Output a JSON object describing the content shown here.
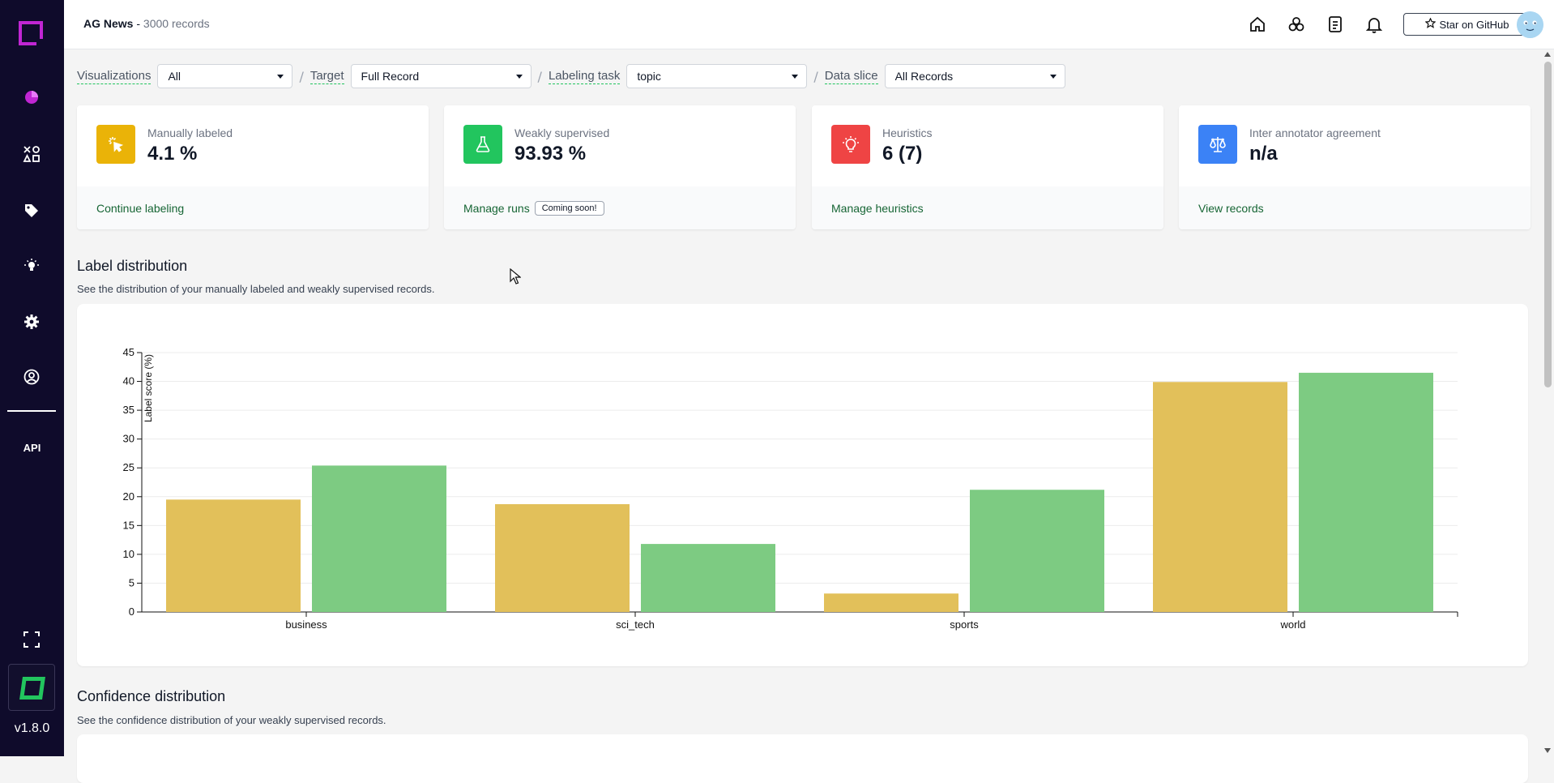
{
  "project": {
    "name": "AG News",
    "separator": "-",
    "records": "3000 records"
  },
  "header": {
    "github_label": "Star on GitHub"
  },
  "sidebar": {
    "icons": [
      "overview-icon",
      "heuristics-icon",
      "labeling-icon",
      "knowledge-icon",
      "settings-icon",
      "account-icon",
      "fullscreen-icon"
    ],
    "api_label": "API",
    "version": "v1.8.0"
  },
  "filters": [
    {
      "label": "Visualizations",
      "value": "All"
    },
    {
      "label": "Target",
      "value": "Full Record"
    },
    {
      "label": "Labeling task",
      "value": "topic"
    },
    {
      "label": "Data slice",
      "value": "All Records"
    }
  ],
  "cards": [
    {
      "title": "Manually labeled",
      "value": "4.1 %",
      "link": "Continue labeling",
      "color": "#eab308",
      "icon": "cursor-click-icon"
    },
    {
      "title": "Weakly supervised",
      "value": "93.93 %",
      "link": "Manage runs",
      "badge": "Coming soon!",
      "color": "#22c55e",
      "icon": "flask-icon"
    },
    {
      "title": "Heuristics",
      "value": "6 (7)",
      "link": "Manage heuristics",
      "color": "#ef4444",
      "icon": "bulb-icon"
    },
    {
      "title": "Inter annotator agreement",
      "value": "n/a",
      "link": "View records",
      "color": "#3b82f6",
      "icon": "scale-icon"
    }
  ],
  "sections": {
    "label_distribution": {
      "title": "Label distribution",
      "subtitle": "See the distribution of your manually labeled and weakly supervised records."
    },
    "confidence_distribution": {
      "title": "Confidence distribution",
      "subtitle": "See the confidence distribution of your weakly supervised records."
    }
  },
  "chart_data": {
    "type": "bar",
    "categories": [
      "business",
      "sci_tech",
      "sports",
      "world"
    ],
    "series": [
      {
        "values": [
          19.5,
          18.7,
          3.2,
          39.9
        ],
        "color": "#e2c05a"
      },
      {
        "values": [
          25.4,
          11.8,
          21.2,
          41.5
        ],
        "color": "#7dcb82"
      }
    ],
    "ylabel": "Label score (%)",
    "ylim": [
      0,
      45
    ],
    "yticks": [
      0,
      5,
      10,
      15,
      20,
      25,
      30,
      35,
      40,
      45
    ],
    "grid": true
  }
}
